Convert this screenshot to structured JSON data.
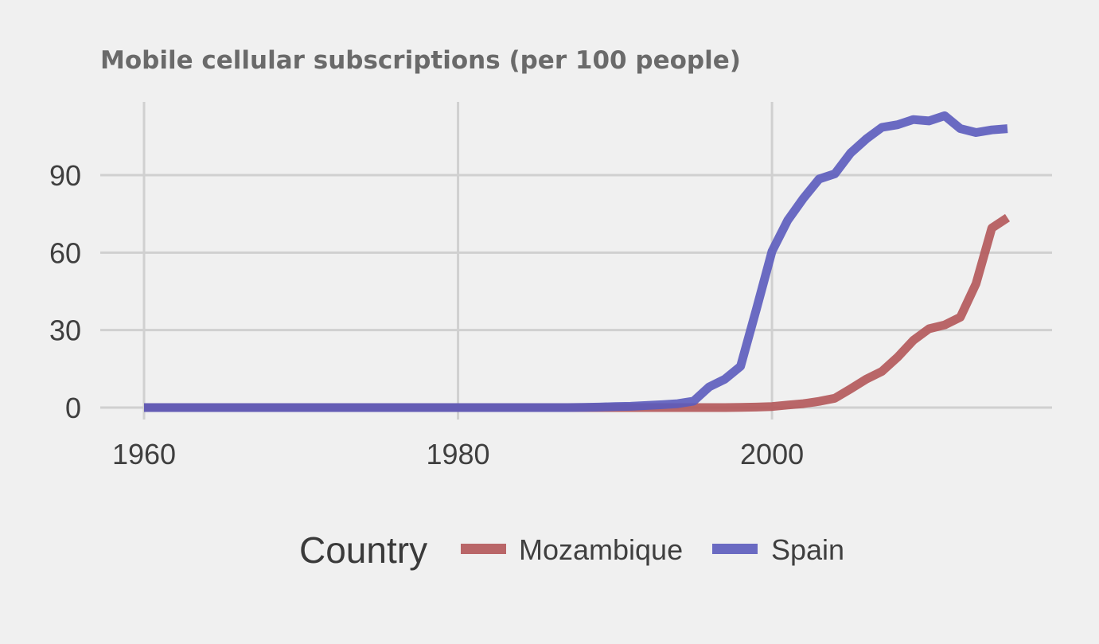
{
  "chart_data": {
    "type": "line",
    "title": "Mobile cellular subscriptions (per 100 people)",
    "xlabel": "",
    "ylabel": "",
    "xlim": [
      1960,
      2015
    ],
    "ylim": [
      0,
      110
    ],
    "x_ticks": [
      1960,
      1980,
      2000
    ],
    "y_ticks": [
      0,
      30,
      60,
      90
    ],
    "grid": true,
    "legend": {
      "title": "Country",
      "position": "bottom"
    },
    "series": [
      {
        "name": "Mozambique",
        "color": "#b35659",
        "x": [
          1960,
          1961,
          1962,
          1963,
          1964,
          1965,
          1966,
          1967,
          1968,
          1969,
          1970,
          1971,
          1972,
          1973,
          1974,
          1975,
          1976,
          1977,
          1978,
          1979,
          1980,
          1981,
          1982,
          1983,
          1984,
          1985,
          1986,
          1987,
          1988,
          1989,
          1990,
          1991,
          1992,
          1993,
          1994,
          1995,
          1996,
          1997,
          1998,
          1999,
          2000,
          2001,
          2002,
          2003,
          2004,
          2005,
          2006,
          2007,
          2008,
          2009,
          2010,
          2011,
          2012,
          2013,
          2014,
          2015
        ],
        "values": [
          0,
          0,
          0,
          0,
          0,
          0,
          0,
          0,
          0,
          0,
          0,
          0,
          0,
          0,
          0,
          0,
          0,
          0,
          0,
          0,
          0,
          0,
          0,
          0,
          0,
          0,
          0,
          0,
          0,
          0,
          0,
          0,
          0,
          0,
          0,
          0,
          0,
          0,
          0.1,
          0.2,
          0.4,
          1.0,
          1.5,
          2.4,
          3.6,
          7.2,
          11.0,
          14.0,
          19.5,
          26.0,
          30.5,
          32.0,
          35.0,
          48.0,
          69.5,
          73.5
        ]
      },
      {
        "name": "Spain",
        "color": "#5b5bbd",
        "x": [
          1960,
          1961,
          1962,
          1963,
          1964,
          1965,
          1966,
          1967,
          1968,
          1969,
          1970,
          1971,
          1972,
          1973,
          1974,
          1975,
          1976,
          1977,
          1978,
          1979,
          1980,
          1981,
          1982,
          1983,
          1984,
          1985,
          1986,
          1987,
          1988,
          1989,
          1990,
          1991,
          1992,
          1993,
          1994,
          1995,
          1996,
          1997,
          1998,
          1999,
          2000,
          2001,
          2002,
          2003,
          2004,
          2005,
          2006,
          2007,
          2008,
          2009,
          2010,
          2011,
          2012,
          2013,
          2014,
          2015
        ],
        "values": [
          0,
          0,
          0,
          0,
          0,
          0,
          0,
          0,
          0,
          0,
          0,
          0,
          0,
          0,
          0,
          0,
          0,
          0,
          0,
          0,
          0,
          0,
          0,
          0,
          0,
          0,
          0,
          0,
          0.1,
          0.2,
          0.4,
          0.5,
          0.8,
          1.1,
          1.5,
          2.5,
          8.0,
          11.0,
          16.0,
          38.0,
          60.5,
          72.5,
          81.0,
          88.5,
          90.5,
          98.5,
          104.0,
          108.5,
          109.5,
          111.5,
          111.0,
          113.0,
          108.0,
          106.5,
          107.5,
          108.0
        ]
      }
    ]
  }
}
